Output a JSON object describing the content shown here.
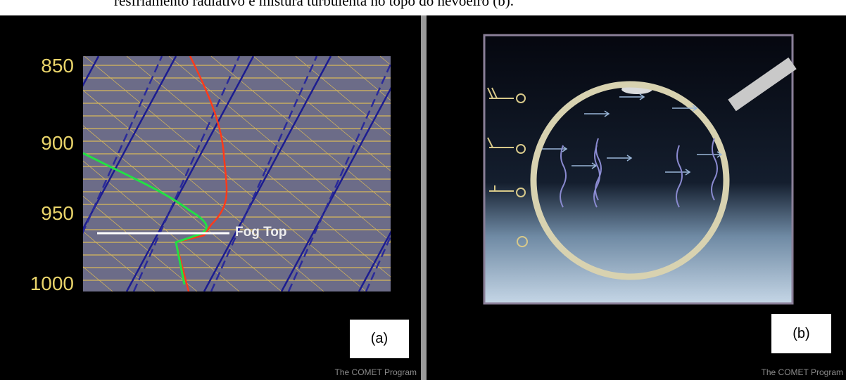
{
  "caption_fragment": "resfriamento radiativo e mistura turbulenta no topo do nevoeiro (b).",
  "panel_a": {
    "pressure_labels": [
      "850",
      "900",
      "950",
      "1000"
    ],
    "annotation": "Fog Top",
    "label": "(a)",
    "credit": "The COMET Program"
  },
  "panel_b": {
    "label": "(b)",
    "credit": "The COMET Program"
  }
}
